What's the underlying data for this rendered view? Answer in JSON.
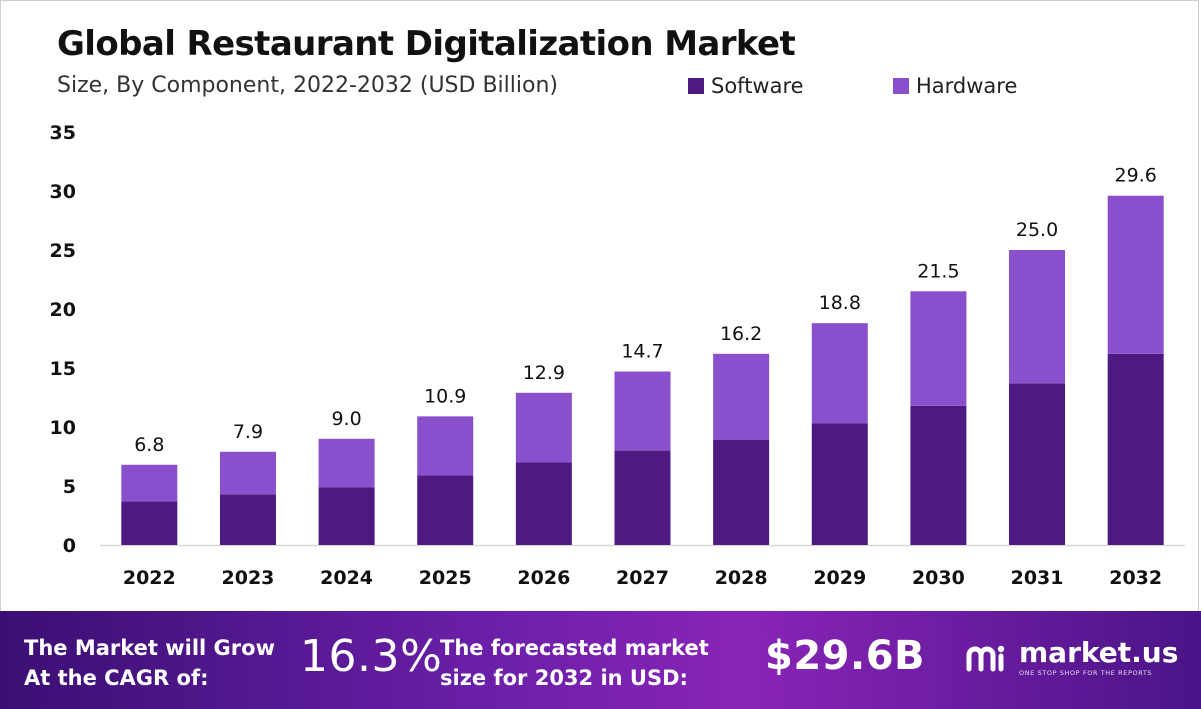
{
  "header": {
    "title": "Global Restaurant Digitalization Market",
    "subtitle": "Size, By Component, 2022-2032 (USD Billion)"
  },
  "legend": [
    {
      "label": "Software",
      "color": "#4e1a82"
    },
    {
      "label": "Hardware",
      "color": "#8a4fcc"
    }
  ],
  "chart_data": {
    "type": "bar",
    "stacked": true,
    "categories": [
      "2022",
      "2023",
      "2024",
      "2025",
      "2026",
      "2027",
      "2028",
      "2029",
      "2030",
      "2031",
      "2032"
    ],
    "series": [
      {
        "name": "Software",
        "color": "#4e1a82",
        "values": [
          3.7,
          4.3,
          4.9,
          5.9,
          7.0,
          8.0,
          8.9,
          10.3,
          11.8,
          13.7,
          16.2
        ]
      },
      {
        "name": "Hardware",
        "color": "#8a4fcc",
        "values": [
          3.1,
          3.6,
          4.1,
          5.0,
          5.9,
          6.7,
          7.3,
          8.5,
          9.7,
          11.3,
          13.4
        ]
      }
    ],
    "totals": [
      "6.8",
      "7.9",
      "9.0",
      "10.9",
      "12.9",
      "14.7",
      "16.2",
      "18.8",
      "21.5",
      "25.0",
      "29.6"
    ],
    "ylim": [
      0,
      35
    ],
    "yticks": [
      0,
      5,
      10,
      15,
      20,
      25,
      30,
      35
    ],
    "grid": false,
    "legend_position": "top-right"
  },
  "footer": {
    "cagr_label_line1": "The Market will Grow",
    "cagr_label_line2": "At the CAGR of:",
    "cagr_value": "16.3%",
    "forecast_label_line1": "The forecasted market",
    "forecast_label_line2": "size for 2032 in USD:",
    "forecast_value": "$29.6B",
    "brand_name": "market.us",
    "brand_tagline": "ONE STOP SHOP FOR THE REPORTS"
  }
}
